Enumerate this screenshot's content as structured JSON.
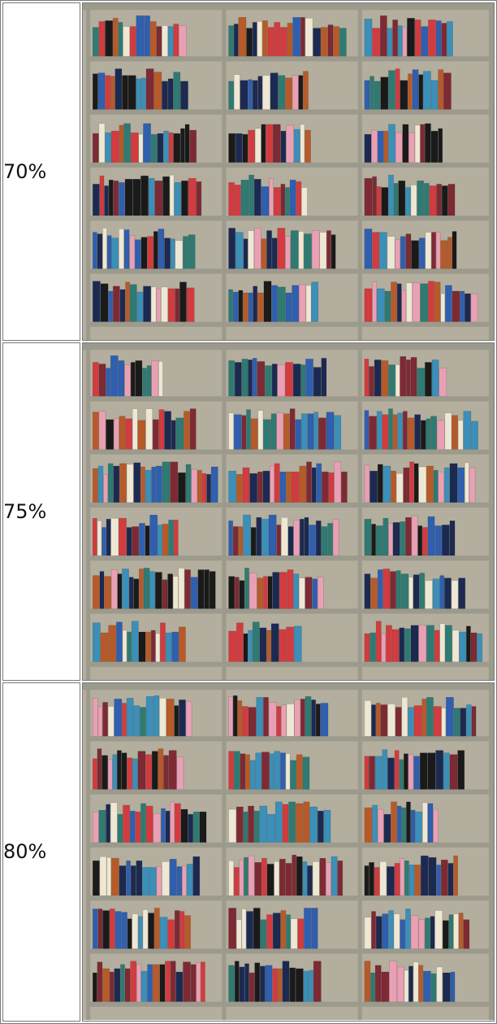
{
  "rows": [
    {
      "label": "70%",
      "image": "bookshelf-photo"
    },
    {
      "label": "75%",
      "image": "bookshelf-photo"
    },
    {
      "label": "80%",
      "image": "bookshelf-photo"
    }
  ],
  "colors": {
    "frame": "#9c9a8c",
    "back": "#b3ae9d",
    "red": "#d23b3f",
    "blue": "#2f5fae",
    "teal": "#2f7a72",
    "navy": "#1c2a52",
    "black": "#1a1a1a",
    "cream": "#eee7d4",
    "orange": "#b75a2a"
  }
}
